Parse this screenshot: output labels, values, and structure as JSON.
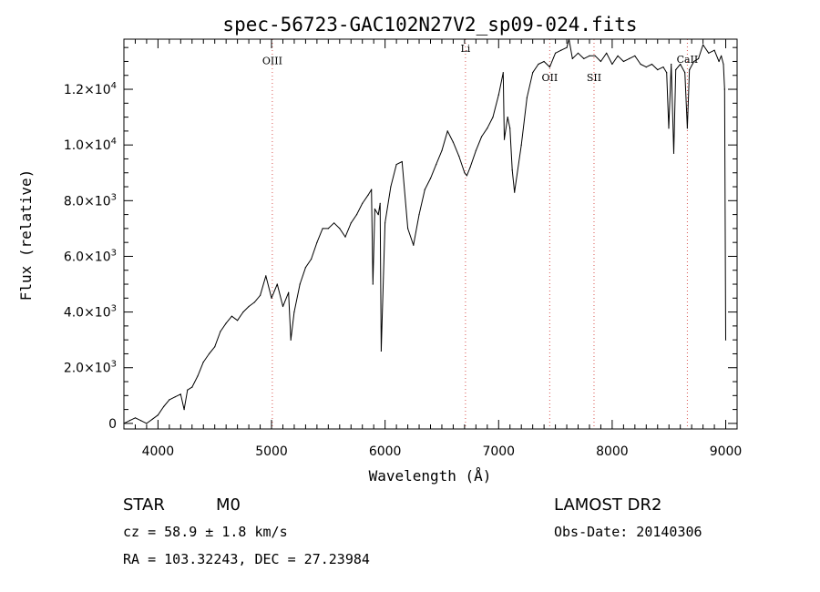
{
  "chart_data": {
    "type": "line",
    "title": "spec-56723-GAC102N27V2_sp09-024.fits",
    "xlabel": "Wavelength (Å)",
    "ylabel": "Flux (relative)",
    "xlim": [
      3700,
      9100
    ],
    "ylim": [
      -200,
      13800
    ],
    "x_ticks": [
      {
        "value": 4000,
        "label": "4000"
      },
      {
        "value": 5000,
        "label": "5000"
      },
      {
        "value": 6000,
        "label": "6000"
      },
      {
        "value": 7000,
        "label": "7000"
      },
      {
        "value": 8000,
        "label": "8000"
      },
      {
        "value": 9000,
        "label": "9000"
      }
    ],
    "y_ticks": [
      {
        "value": 0,
        "mantissa": "0",
        "exponent": ""
      },
      {
        "value": 2000,
        "mantissa": "2.0×10",
        "exponent": "3"
      },
      {
        "value": 4000,
        "mantissa": "4.0×10",
        "exponent": "3"
      },
      {
        "value": 6000,
        "mantissa": "6.0×10",
        "exponent": "3"
      },
      {
        "value": 8000,
        "mantissa": "8.0×10",
        "exponent": "3"
      },
      {
        "value": 10000,
        "mantissa": "1.0×10",
        "exponent": "4"
      },
      {
        "value": 12000,
        "mantissa": "1.2×10",
        "exponent": "4"
      }
    ],
    "line_markers": [
      {
        "label": "OIII",
        "wavelength": 5007,
        "label_y": 12900
      },
      {
        "label": "Li",
        "wavelength": 6708,
        "label_y": 13350
      },
      {
        "label": "OII",
        "wavelength": 7450,
        "label_y": 12300
      },
      {
        "label": "SII",
        "wavelength": 7840,
        "label_y": 12300
      },
      {
        "label": "CaII",
        "wavelength": 8662,
        "label_y": 12950
      }
    ],
    "series": [
      {
        "color": "#000000",
        "x": [
          3700,
          3750,
          3800,
          3850,
          3900,
          3950,
          4000,
          4050,
          4100,
          4150,
          4200,
          4230,
          4260,
          4300,
          4350,
          4400,
          4450,
          4500,
          4550,
          4600,
          4650,
          4700,
          4750,
          4800,
          4850,
          4900,
          4950,
          5000,
          5050,
          5100,
          5150,
          5170,
          5200,
          5250,
          5300,
          5350,
          5400,
          5450,
          5500,
          5550,
          5600,
          5650,
          5700,
          5750,
          5800,
          5850,
          5880,
          5893,
          5910,
          5940,
          5956,
          5966,
          6000,
          6050,
          6100,
          6150,
          6200,
          6250,
          6300,
          6350,
          6400,
          6450,
          6500,
          6550,
          6600,
          6650,
          6700,
          6720,
          6750,
          6800,
          6850,
          6900,
          6950,
          7000,
          7040,
          7050,
          7080,
          7100,
          7120,
          7140,
          7200,
          7250,
          7300,
          7350,
          7400,
          7450,
          7500,
          7550,
          7600,
          7620,
          7650,
          7700,
          7750,
          7800,
          7850,
          7900,
          7950,
          8000,
          8050,
          8100,
          8150,
          8200,
          8250,
          8300,
          8350,
          8400,
          8450,
          8480,
          8498,
          8520,
          8542,
          8560,
          8600,
          8640,
          8662,
          8680,
          8720,
          8760,
          8800,
          8850,
          8900,
          8940,
          8960,
          8980,
          8990,
          9000
        ],
        "y": [
          0,
          100,
          200,
          100,
          0,
          150,
          300,
          600,
          850,
          950,
          1050,
          500,
          1200,
          1300,
          1700,
          2200,
          2500,
          2750,
          3300,
          3600,
          3850,
          3700,
          4000,
          4200,
          4350,
          4600,
          5300,
          4500,
          5000,
          4200,
          4700,
          3000,
          4000,
          5000,
          5600,
          5900,
          6500,
          7000,
          7000,
          7200,
          7000,
          6700,
          7200,
          7500,
          7900,
          8200,
          8400,
          5000,
          7700,
          7500,
          7900,
          2600,
          7200,
          8500,
          9300,
          9400,
          7000,
          6400,
          7500,
          8400,
          8800,
          9300,
          9800,
          10500,
          10100,
          9600,
          9000,
          8900,
          9200,
          9800,
          10300,
          10600,
          11000,
          11800,
          12600,
          10200,
          11000,
          10600,
          9100,
          8300,
          10000,
          11700,
          12600,
          12900,
          13000,
          12800,
          13300,
          13400,
          13500,
          13800,
          13100,
          13300,
          13100,
          13200,
          13200,
          13000,
          13300,
          12900,
          13200,
          13000,
          13100,
          13200,
          12900,
          12800,
          12900,
          12700,
          12800,
          12600,
          10600,
          12900,
          9700,
          12700,
          12900,
          12600,
          10600,
          12700,
          13000,
          13100,
          13600,
          13300,
          13400,
          13000,
          13200,
          12900,
          12000,
          3000
        ]
      }
    ]
  },
  "footer": {
    "object_class": "STAR",
    "subclass": "M0",
    "survey": "LAMOST DR2",
    "redshift": "cz = 58.9 ± 1.8 km/s",
    "obs_date": "Obs-Date: 20140306",
    "coordinates": "RA = 103.32243, DEC =  27.23984"
  }
}
